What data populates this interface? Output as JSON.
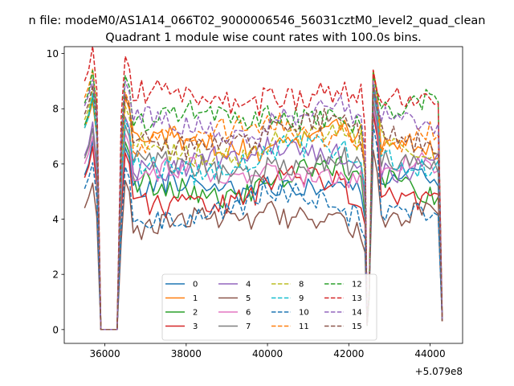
{
  "figure": {
    "suptitle": "n file: modeM0/AS1A14_066T02_9000006546_56031cztM0_level2_quad_clean"
  },
  "chart_data": {
    "type": "line",
    "title": "Quadrant 1 module wise count rates with 100.0s bins.",
    "xlabel": "",
    "ylabel": "",
    "x_offset_label": "+5.079e8",
    "x_offset": 507900000,
    "xlim": [
      35000,
      44800
    ],
    "ylim": [
      -0.5,
      10.25
    ],
    "xticks": [
      36000,
      38000,
      40000,
      42000,
      44000
    ],
    "xtick_labels": [
      "36000",
      "38000",
      "40000",
      "42000",
      "44000"
    ],
    "yticks": [
      0,
      2,
      4,
      6,
      8,
      10
    ],
    "ytick_labels": [
      "0",
      "2",
      "4",
      "6",
      "8",
      "10"
    ],
    "grid": false,
    "legend": {
      "placement": "lower center",
      "columns": 4
    },
    "x_segments": [
      [
        35500,
        35800
      ],
      [
        36400,
        42400
      ],
      [
        42500,
        44300
      ]
    ],
    "bin_width": 100,
    "gap_value": 0,
    "gap_x": [
      35900,
      36300
    ],
    "gap_drop_edges": {
      "segment1_end": 35800,
      "segment2_start": 36400,
      "segment2_end_dip": 42400,
      "segment3_start": 42500
    },
    "series": [
      {
        "name": "0",
        "color": "#1f77b4",
        "dash": "solid",
        "start": 5.6,
        "level": 5.0,
        "peak3": 8.0,
        "level3": 5.4,
        "end": 0.3,
        "seed": 11
      },
      {
        "name": "1",
        "color": "#ff7f0e",
        "dash": "solid",
        "start": 7.3,
        "level": 6.8,
        "peak3": 9.4,
        "level3": 6.6,
        "end": 0.3,
        "seed": 12
      },
      {
        "name": "2",
        "color": "#2ca02c",
        "dash": "solid",
        "start": 7.4,
        "level": 5.2,
        "peak3": 8.9,
        "level3": 5.2,
        "end": 0.3,
        "seed": 13
      },
      {
        "name": "3",
        "color": "#d62728",
        "dash": "solid",
        "start": 5.5,
        "level": 4.8,
        "peak3": 7.8,
        "level3": 4.9,
        "end": 0.3,
        "seed": 14
      },
      {
        "name": "4",
        "color": "#9467bd",
        "dash": "solid",
        "start": 6.3,
        "level": 6.1,
        "peak3": 8.6,
        "level3": 6.0,
        "end": 0.3,
        "seed": 15
      },
      {
        "name": "5",
        "color": "#8c564b",
        "dash": "solid",
        "start": 4.4,
        "level": 3.8,
        "peak3": 6.5,
        "level3": 4.2,
        "end": 0.3,
        "seed": 16
      },
      {
        "name": "6",
        "color": "#e377c2",
        "dash": "solid",
        "start": 6.0,
        "level": 5.5,
        "peak3": 8.1,
        "level3": 5.8,
        "end": 0.3,
        "seed": 17
      },
      {
        "name": "7",
        "color": "#7f7f7f",
        "dash": "solid",
        "start": 6.2,
        "level": 5.8,
        "peak3": 8.3,
        "level3": 5.9,
        "end": 0.3,
        "seed": 18
      },
      {
        "name": "8",
        "color": "#bcbd22",
        "dash": "dashed",
        "start": 7.6,
        "level": 6.5,
        "peak3": 9.0,
        "level3": 6.6,
        "end": 0.3,
        "seed": 19
      },
      {
        "name": "9",
        "color": "#17becf",
        "dash": "dashed",
        "start": 7.3,
        "level": 6.0,
        "peak3": 8.7,
        "level3": 6.1,
        "end": 0.3,
        "seed": 20
      },
      {
        "name": "10",
        "color": "#1f77b4",
        "dash": "dashed",
        "start": 5.1,
        "level": 4.3,
        "peak3": 7.4,
        "level3": 4.4,
        "end": 0.3,
        "seed": 21
      },
      {
        "name": "11",
        "color": "#ff7f0e",
        "dash": "dashed",
        "start": 8.4,
        "level": 7.0,
        "peak3": 9.3,
        "level3": 7.0,
        "end": 0.3,
        "seed": 22
      },
      {
        "name": "12",
        "color": "#2ca02c",
        "dash": "dashed",
        "start": 8.2,
        "level": 7.6,
        "peak3": 9.3,
        "level3": 8.0,
        "end": 0.3,
        "seed": 23
      },
      {
        "name": "13",
        "color": "#d62728",
        "dash": "dashed",
        "start": 9.0,
        "level": 8.3,
        "peak3": 9.4,
        "level3": 8.1,
        "end": 0.3,
        "seed": 24
      },
      {
        "name": "14",
        "color": "#9467bd",
        "dash": "dashed",
        "start": 8.1,
        "level": 7.4,
        "peak3": 9.0,
        "level3": 7.5,
        "end": 0.3,
        "seed": 25
      },
      {
        "name": "15",
        "color": "#8c564b",
        "dash": "dashed",
        "start": 7.8,
        "level": 6.9,
        "peak3": 8.8,
        "level3": 7.0,
        "end": 0.3,
        "seed": 26
      }
    ]
  }
}
